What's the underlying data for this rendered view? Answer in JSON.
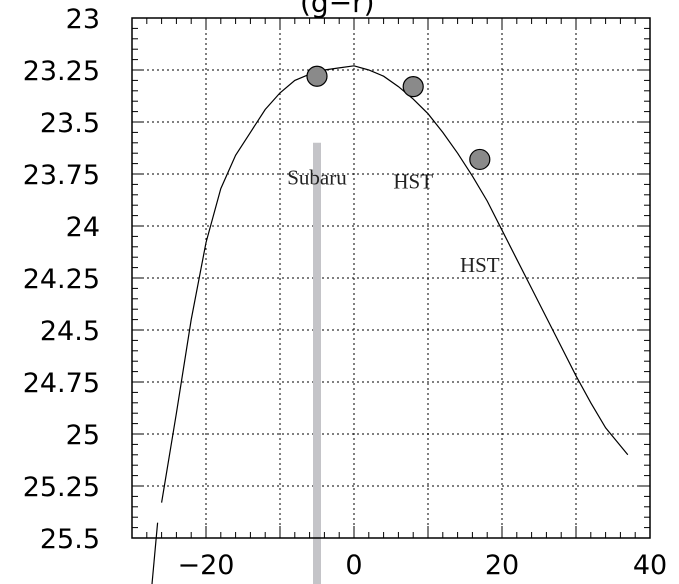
{
  "chart_data": {
    "type": "line",
    "title": "(g−r)",
    "xlabel": "",
    "ylabel": "",
    "xlim": [
      -30,
      40
    ],
    "ylim": [
      23,
      25.5
    ],
    "y_inverted": true,
    "grid": true,
    "x_ticks": [
      {
        "value": -20,
        "label": "−20"
      },
      {
        "value": 0,
        "label": "0"
      },
      {
        "value": 20,
        "label": "20"
      },
      {
        "value": 40,
        "label": "40"
      }
    ],
    "y_ticks": [
      {
        "value": 23,
        "label": "23"
      },
      {
        "value": 23.25,
        "label": "23.25"
      },
      {
        "value": 23.5,
        "label": "23.5"
      },
      {
        "value": 23.75,
        "label": "23.75"
      },
      {
        "value": 24,
        "label": "24"
      },
      {
        "value": 24.25,
        "label": "24.25"
      },
      {
        "value": 24.5,
        "label": "24.5"
      },
      {
        "value": 24.75,
        "label": "24.75"
      },
      {
        "value": 25,
        "label": "25"
      },
      {
        "value": 25.25,
        "label": "25.25"
      },
      {
        "value": 25.5,
        "label": "25.5"
      }
    ],
    "series": [
      {
        "kind": "line",
        "x": [
          -26,
          -24,
          -22,
          -20,
          -18,
          -16,
          -14,
          -12,
          -10,
          -8,
          -6,
          -4,
          -2,
          0,
          2,
          4,
          6,
          8,
          10,
          12,
          14,
          16,
          18,
          20,
          22,
          24,
          26,
          28,
          30,
          32,
          34,
          37
        ],
        "y": [
          25.33,
          24.9,
          24.45,
          24.08,
          23.82,
          23.66,
          23.55,
          23.44,
          23.36,
          23.3,
          23.27,
          23.25,
          23.24,
          23.23,
          23.25,
          23.28,
          23.33,
          23.39,
          23.46,
          23.55,
          23.65,
          23.76,
          23.88,
          24.02,
          24.16,
          24.3,
          24.44,
          24.58,
          24.72,
          24.85,
          24.97,
          25.1
        ]
      },
      {
        "kind": "points",
        "x": [
          -5,
          8,
          17
        ],
        "y": [
          23.28,
          23.33,
          23.68
        ],
        "color": "#8a8a8a"
      }
    ],
    "annotations": [
      {
        "text": "Subaru",
        "x": -5,
        "y": 23.8
      },
      {
        "text": "HST",
        "x": 8,
        "y": 23.82
      },
      {
        "text": "HST",
        "x": 17,
        "y": 24.22
      }
    ],
    "reference_line": {
      "x": -5,
      "y_from": 23.6,
      "to_bottom": true,
      "color": "#c4c4c8"
    },
    "colors": {
      "frame": "#000000",
      "grid": "#000000",
      "curve": "#000000",
      "marker_fill": "#8a8a8a",
      "band": "#c4c4c8"
    }
  }
}
